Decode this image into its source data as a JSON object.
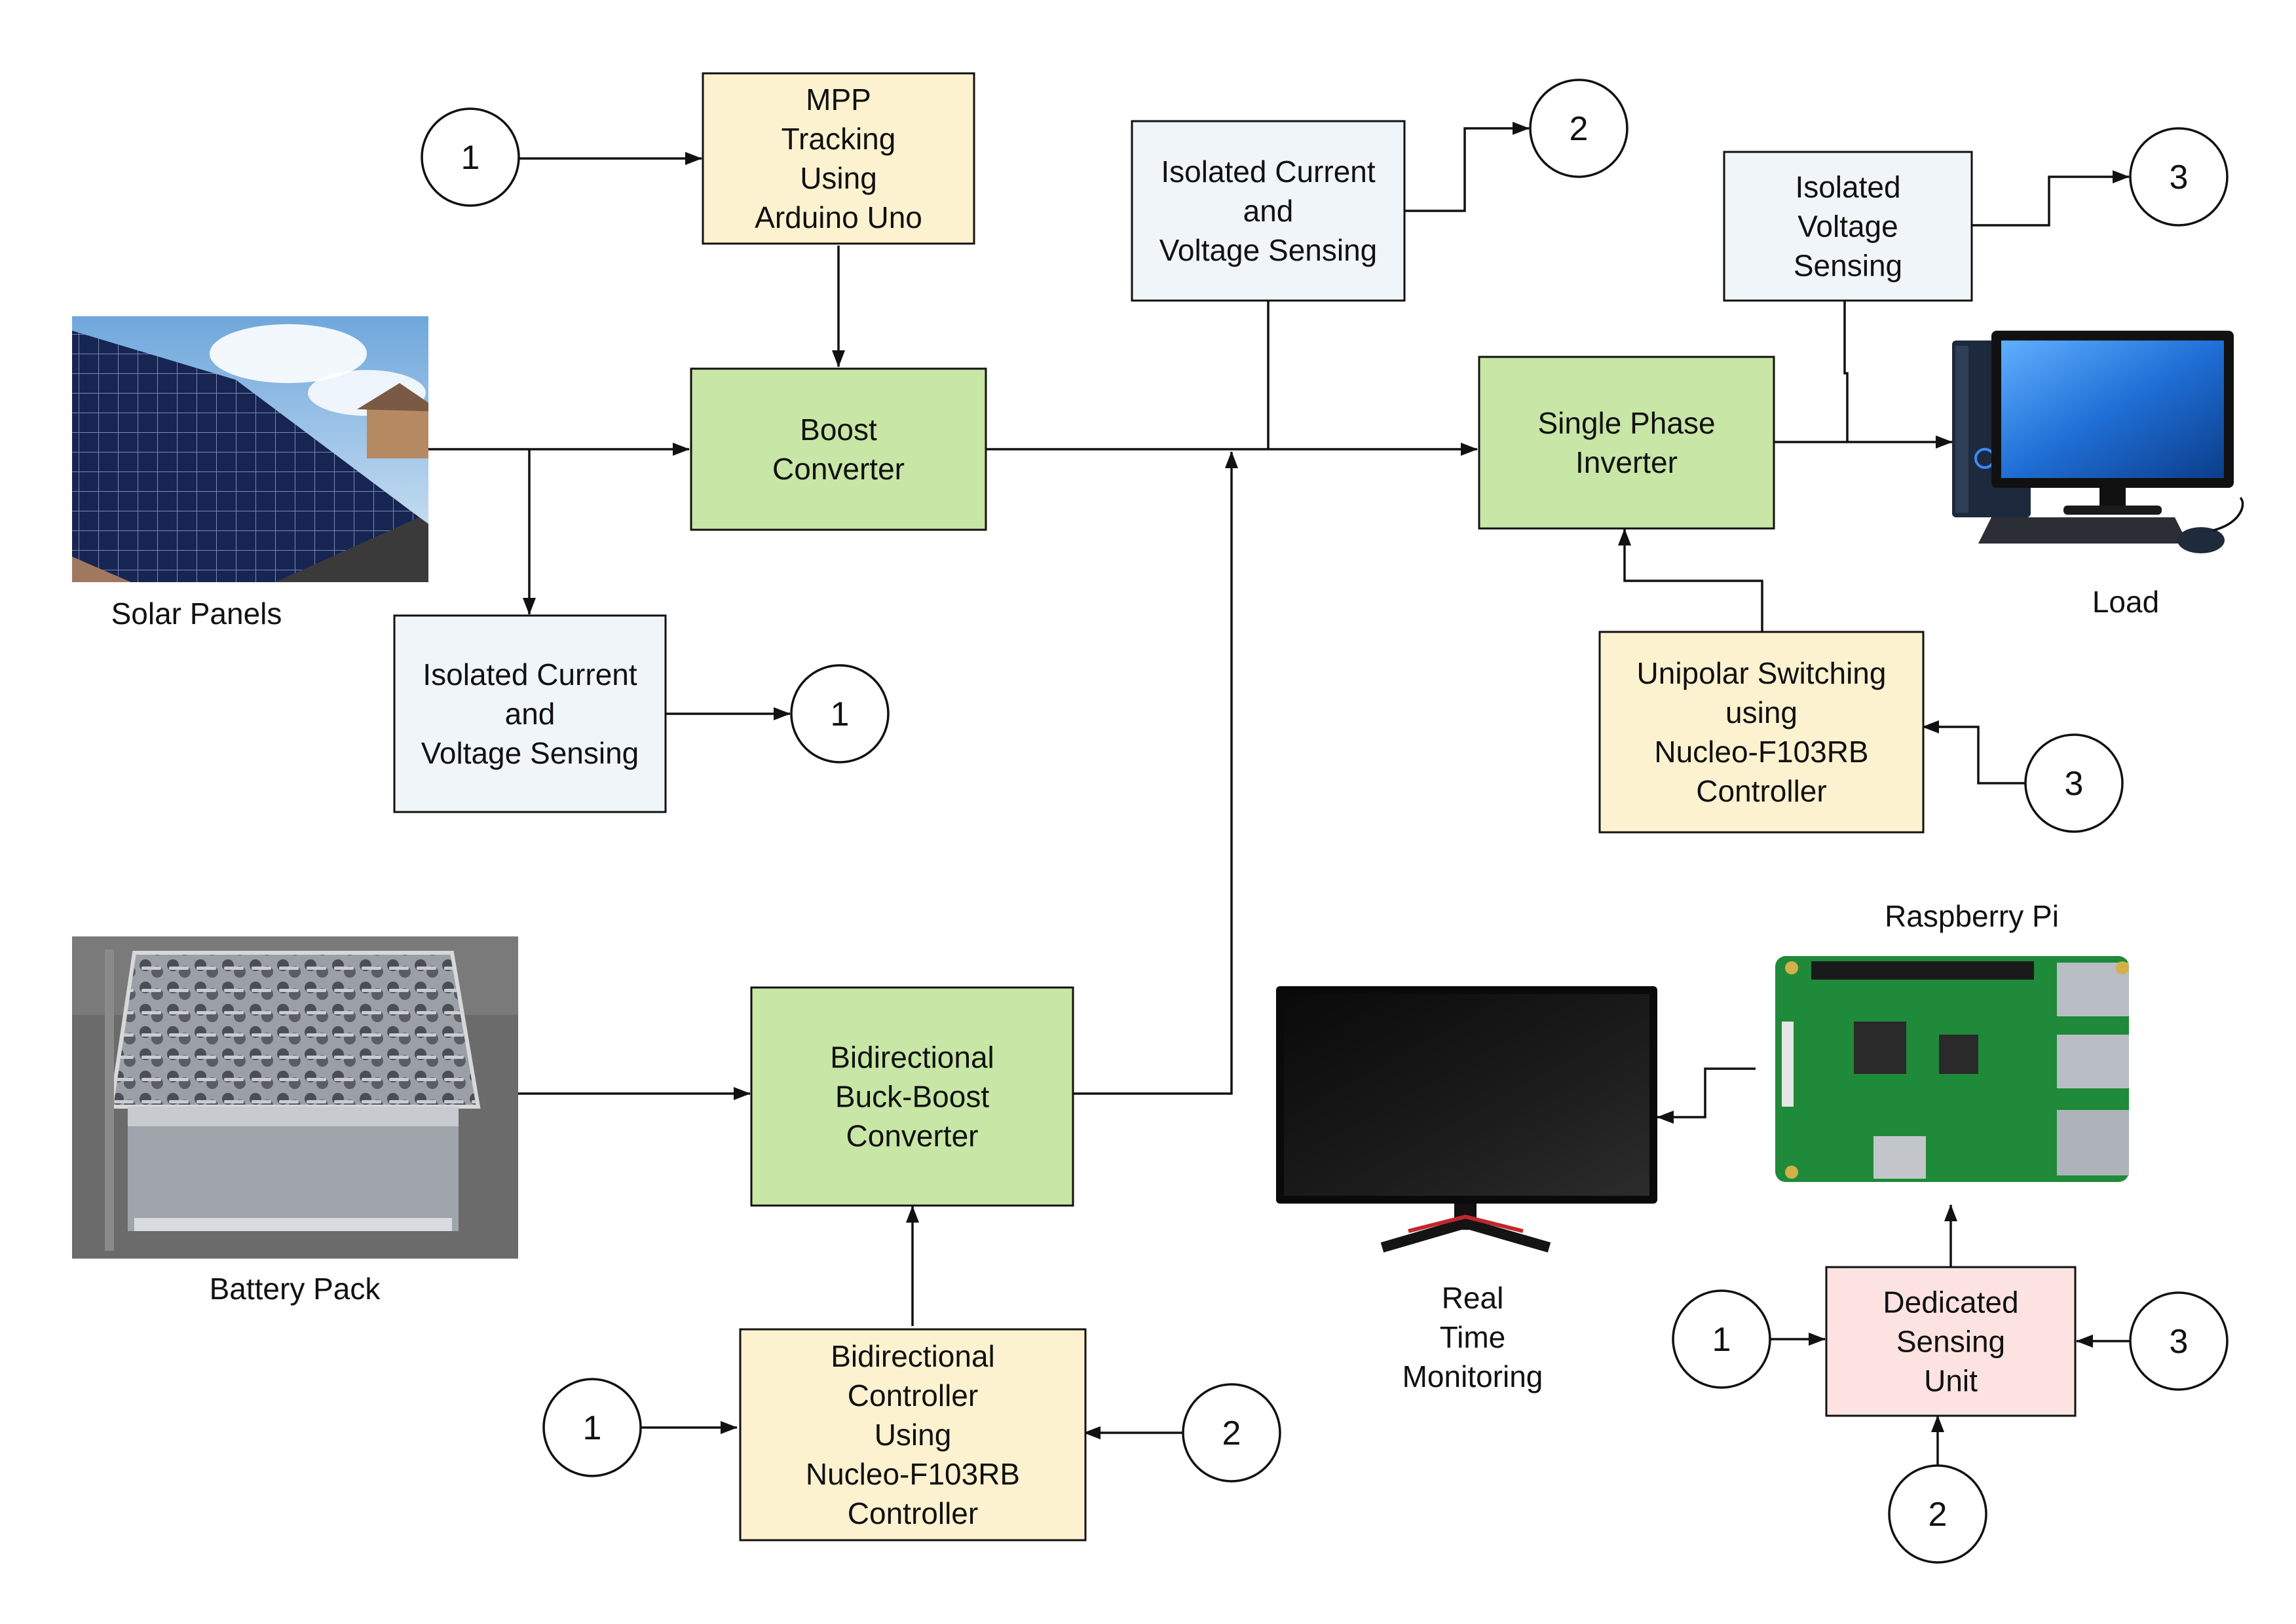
{
  "colors": {
    "controller_fill": "#fdf2d0",
    "converter_fill": "#c8e6a6",
    "sensing_fill": "#f0f5f9",
    "dedicated_fill": "#fce3e1",
    "stroke": "#111111"
  },
  "boxes": {
    "mpp": [
      "MPP",
      "Tracking",
      "Using",
      "Arduino Uno"
    ],
    "boost": [
      "Boost",
      "Converter"
    ],
    "sense_pv": [
      "Isolated Current",
      "and",
      "Voltage Sensing"
    ],
    "sense_dc": [
      "Isolated Current",
      "and",
      "Voltage Sensing"
    ],
    "sense_ac": [
      "Isolated",
      "Voltage",
      "Sensing"
    ],
    "inverter": [
      "Single Phase",
      "Inverter"
    ],
    "unipolar": [
      "Unipolar Switching",
      "using",
      "Nucleo-F103RB",
      "Controller"
    ],
    "bidir": [
      "Bidirectional",
      "Buck-Boost",
      "Converter"
    ],
    "bidir_ctrl": [
      "Bidirectional",
      "Controller",
      "Using",
      "Nucleo-F103RB",
      "Controller"
    ],
    "dedicated": [
      "Dedicated",
      "Sensing",
      "Unit"
    ]
  },
  "nodes": {
    "n1_mpp": "1",
    "n1_sense": "1",
    "n2_sense": "2",
    "n3_sense": "3",
    "n3_unipolar": "3",
    "n1_bidir": "1",
    "n2_bidir": "2",
    "n1_ded": "1",
    "n3_ded": "3",
    "n2_ded": "2"
  },
  "labels": {
    "solar": "Solar Panels",
    "battery": "Battery Pack",
    "load": "Load",
    "rpi": "Raspberry Pi",
    "monitor": [
      "Real",
      "Time",
      "Monitoring"
    ]
  },
  "icons": {
    "solar": "solar-panels-image",
    "battery": "battery-pack-image",
    "load": "desktop-computer-icon",
    "monitor": "monitor-icon",
    "rpi": "raspberry-pi-board-image"
  }
}
